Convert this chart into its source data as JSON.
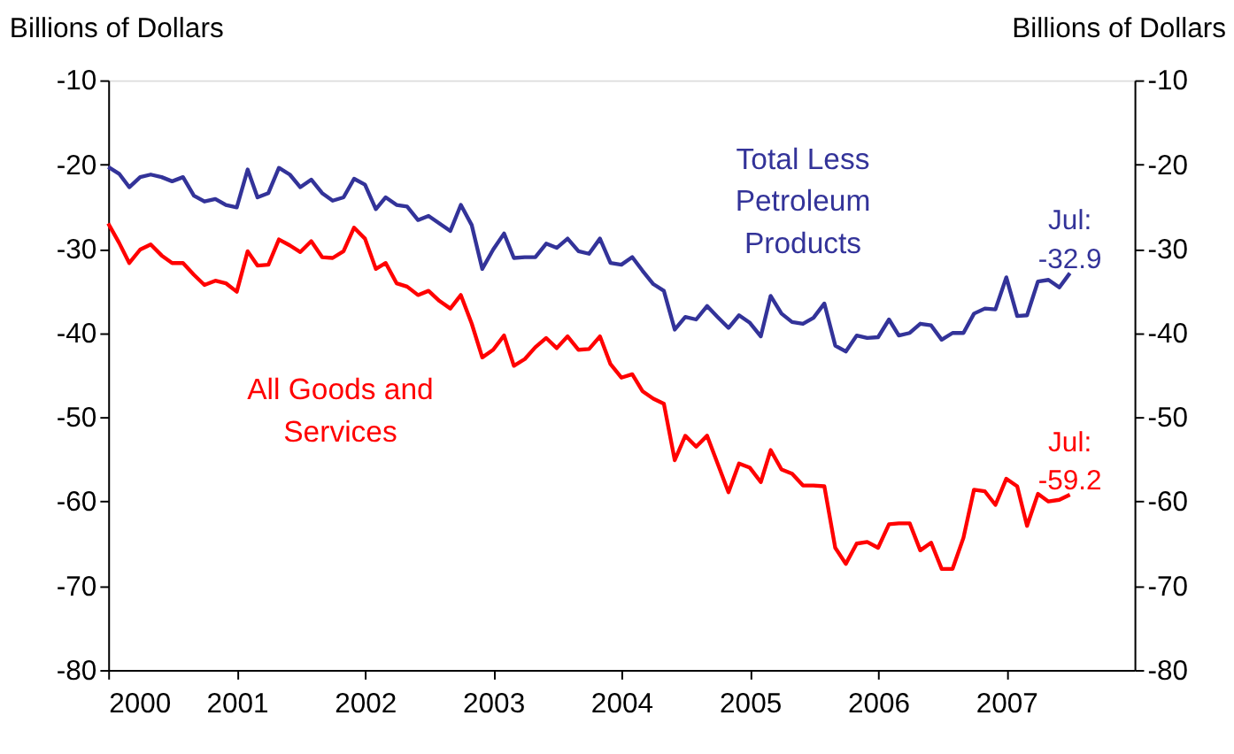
{
  "chart_data": {
    "type": "line",
    "ylabel": "Billions of Dollars",
    "y2label": "Billions of Dollars",
    "x": [
      "2000-01",
      "2000-02",
      "2000-03",
      "2000-04",
      "2000-05",
      "2000-06",
      "2000-07",
      "2000-08",
      "2000-09",
      "2000-10",
      "2000-11",
      "2000-12",
      "2001-01",
      "2001-02",
      "2001-03",
      "2001-04",
      "2001-05",
      "2001-06",
      "2001-07",
      "2001-08",
      "2001-09",
      "2001-10",
      "2001-11",
      "2001-12",
      "2002-01",
      "2002-02",
      "2002-03",
      "2002-04",
      "2002-05",
      "2002-06",
      "2002-07",
      "2002-08",
      "2002-09",
      "2002-10",
      "2002-11",
      "2002-12",
      "2003-01",
      "2003-02",
      "2003-03",
      "2003-04",
      "2003-05",
      "2003-06",
      "2003-07",
      "2003-08",
      "2003-09",
      "2003-10",
      "2003-11",
      "2003-12",
      "2004-01",
      "2004-02",
      "2004-03",
      "2004-04",
      "2004-05",
      "2004-06",
      "2004-07",
      "2004-08",
      "2004-09",
      "2004-10",
      "2004-11",
      "2004-12",
      "2005-01",
      "2005-02",
      "2005-03",
      "2005-04",
      "2005-05",
      "2005-06",
      "2005-07",
      "2005-08",
      "2005-09",
      "2005-10",
      "2005-11",
      "2005-12",
      "2006-01",
      "2006-02",
      "2006-03",
      "2006-04",
      "2006-05",
      "2006-06",
      "2006-07",
      "2006-08",
      "2006-09",
      "2006-10",
      "2006-11",
      "2006-12",
      "2007-01",
      "2007-02",
      "2007-03",
      "2007-04",
      "2007-05",
      "2007-06",
      "2007-07"
    ],
    "series": [
      {
        "name": "Total Less\nPetroleum\nProducts",
        "color": "#333399",
        "values": [
          -20.3,
          -21.1,
          -22.7,
          -21.5,
          -21.2,
          -21.5,
          -22.0,
          -21.5,
          -23.7,
          -24.4,
          -24.1,
          -24.8,
          -25.1,
          -20.6,
          -23.9,
          -23.4,
          -20.4,
          -21.2,
          -22.7,
          -21.8,
          -23.4,
          -24.3,
          -23.9,
          -21.7,
          -22.4,
          -25.3,
          -23.9,
          -24.8,
          -25.0,
          -26.6,
          -26.1,
          -27.0,
          -27.9,
          -24.8,
          -27.2,
          -32.4,
          -30.1,
          -28.2,
          -31.1,
          -31.0,
          -31.0,
          -29.4,
          -29.9,
          -28.8,
          -30.3,
          -30.6,
          -28.8,
          -31.7,
          -31.9,
          -31.0,
          -32.6,
          -34.2,
          -35.0,
          -39.6,
          -38.1,
          -38.4,
          -36.8,
          -38.1,
          -39.4,
          -37.9,
          -38.8,
          -40.4,
          -35.6,
          -37.7,
          -38.7,
          -38.9,
          -38.2,
          -36.5,
          -41.5,
          -42.2,
          -40.3,
          -40.6,
          -40.5,
          -38.4,
          -40.3,
          -40.0,
          -38.9,
          -39.1,
          -40.8,
          -40.0,
          -40.0,
          -37.7,
          -37.1,
          -37.2,
          -33.4,
          -38.0,
          -37.9,
          -33.9,
          -33.7,
          -34.6,
          -32.9
        ]
      },
      {
        "name": "All Goods and\nServices",
        "color": "#ff0000",
        "values": [
          -27.0,
          -29.3,
          -31.7,
          -30.1,
          -29.5,
          -30.8,
          -31.7,
          -31.7,
          -33.1,
          -34.3,
          -33.8,
          -34.1,
          -35.1,
          -30.3,
          -32.0,
          -31.9,
          -28.9,
          -29.6,
          -30.4,
          -29.1,
          -31.0,
          -31.1,
          -30.3,
          -27.5,
          -28.8,
          -32.4,
          -31.7,
          -34.1,
          -34.5,
          -35.5,
          -35.0,
          -36.2,
          -37.1,
          -35.5,
          -38.9,
          -42.9,
          -42.0,
          -40.3,
          -43.9,
          -43.1,
          -41.7,
          -40.6,
          -41.8,
          -40.4,
          -42.0,
          -41.9,
          -40.4,
          -43.7,
          -45.3,
          -44.9,
          -46.9,
          -47.8,
          -48.4,
          -55.1,
          -52.2,
          -53.5,
          -52.2,
          -55.5,
          -58.9,
          -55.5,
          -56.0,
          -57.7,
          -53.9,
          -56.2,
          -56.7,
          -58.1,
          -58.1,
          -58.2,
          -65.5,
          -67.4,
          -65.0,
          -64.8,
          -65.5,
          -62.7,
          -62.6,
          -62.6,
          -65.8,
          -64.9,
          -68.0,
          -68.0,
          -64.3,
          -58.6,
          -58.8,
          -60.4,
          -57.3,
          -58.2,
          -62.9,
          -59.1,
          -60.0,
          -59.8,
          -59.2
        ]
      }
    ],
    "annotations": [
      {
        "text": "Jul:\n-32.9",
        "x": "2007-07",
        "y": -32.9
      },
      {
        "text": "Jul:\n-59.2",
        "x": "2007-07",
        "y": -59.2
      }
    ],
    "xlim": [
      "2000",
      "2008"
    ],
    "xticks": [
      "2000",
      "2001",
      "2002",
      "2003",
      "2004",
      "2005",
      "2006",
      "2007"
    ],
    "ylim": [
      -80,
      -10
    ],
    "yticks": [
      -80,
      -70,
      -60,
      -50,
      -40,
      -30,
      -20,
      -10
    ],
    "y2lim": [
      -80,
      -10
    ],
    "y2ticks": [
      -80,
      -70,
      -60,
      -50,
      -40,
      -30,
      -20,
      -10
    ],
    "grid": false,
    "marker": "none",
    "line_style": "solid"
  }
}
